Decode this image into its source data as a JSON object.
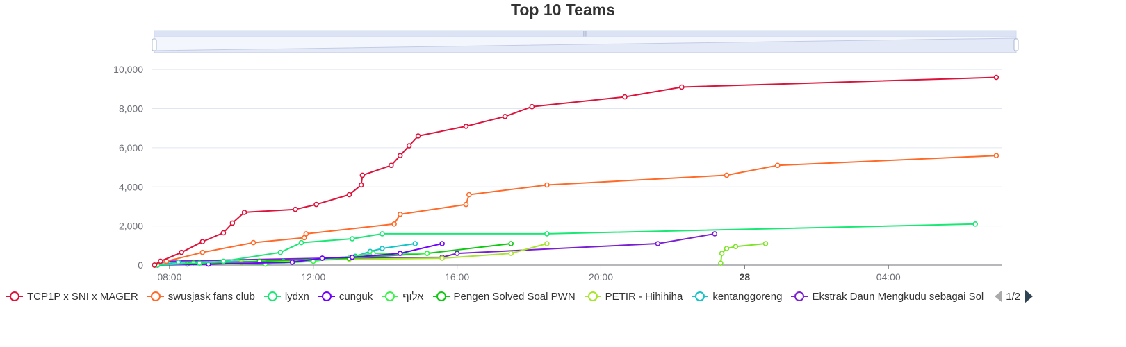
{
  "chart_data": {
    "type": "line",
    "title": "Top 10 Teams",
    "x_axis_type": "time",
    "x_range": [
      "2025-05-27 07:30",
      "2025-05-28 07:10"
    ],
    "x_ticks": [
      {
        "t": "2025-05-27 08:00",
        "label": "08:00",
        "bold": false
      },
      {
        "t": "2025-05-27 12:00",
        "label": "12:00",
        "bold": false
      },
      {
        "t": "2025-05-27 16:00",
        "label": "16:00",
        "bold": false
      },
      {
        "t": "2025-05-27 20:00",
        "label": "20:00",
        "bold": false
      },
      {
        "t": "2025-05-28 00:00",
        "label": "28",
        "bold": true
      },
      {
        "t": "2025-05-28 04:00",
        "label": "04:00",
        "bold": false
      }
    ],
    "ylim": [
      0,
      11000
    ],
    "y_ticks": [
      {
        "v": 0,
        "label": "0"
      },
      {
        "v": 2000,
        "label": "2,000"
      },
      {
        "v": 4000,
        "label": "4,000"
      },
      {
        "v": 6000,
        "label": "6,000"
      },
      {
        "v": 8000,
        "label": "8,000"
      },
      {
        "v": 10000,
        "label": "10,000"
      }
    ],
    "grid": true,
    "legend_position": "bottom",
    "legend_page": "1/2",
    "series": [
      {
        "name": "TCP1P x SNI x MAGER",
        "color": "#dc143c",
        "points": [
          [
            "2025-05-27 07:35",
            0
          ],
          [
            "2025-05-27 07:45",
            200
          ],
          [
            "2025-05-27 08:20",
            650
          ],
          [
            "2025-05-27 08:55",
            1200
          ],
          [
            "2025-05-27 09:30",
            1650
          ],
          [
            "2025-05-27 09:45",
            2150
          ],
          [
            "2025-05-27 10:05",
            2700
          ],
          [
            "2025-05-27 11:30",
            2850
          ],
          [
            "2025-05-27 12:05",
            3100
          ],
          [
            "2025-05-27 13:00",
            3600
          ],
          [
            "2025-05-27 13:20",
            4100
          ],
          [
            "2025-05-27 13:22",
            4600
          ],
          [
            "2025-05-27 14:10",
            5100
          ],
          [
            "2025-05-27 14:25",
            5600
          ],
          [
            "2025-05-27 14:40",
            6100
          ],
          [
            "2025-05-27 14:55",
            6600
          ],
          [
            "2025-05-27 16:15",
            7100
          ],
          [
            "2025-05-27 17:20",
            7600
          ],
          [
            "2025-05-27 18:05",
            8100
          ],
          [
            "2025-05-27 20:40",
            8600
          ],
          [
            "2025-05-27 22:15",
            9100
          ],
          [
            "2025-05-28 07:00",
            9600
          ]
        ]
      },
      {
        "name": "swusjask fans club",
        "color": "#ff6a28",
        "points": [
          [
            "2025-05-27 07:35",
            0
          ],
          [
            "2025-05-27 07:55",
            200
          ],
          [
            "2025-05-27 08:55",
            650
          ],
          [
            "2025-05-27 10:20",
            1150
          ],
          [
            "2025-05-27 11:45",
            1400
          ],
          [
            "2025-05-27 11:48",
            1600
          ],
          [
            "2025-05-27 14:15",
            2100
          ],
          [
            "2025-05-27 14:25",
            2600
          ],
          [
            "2025-05-27 16:15",
            3100
          ],
          [
            "2025-05-27 16:20",
            3600
          ],
          [
            "2025-05-27 18:30",
            4100
          ],
          [
            "2025-05-27 23:30",
            4600
          ],
          [
            "2025-05-28 00:55",
            5100
          ],
          [
            "2025-05-28 07:00",
            5600
          ]
        ]
      },
      {
        "name": "lydxn",
        "color": "#1ae874",
        "points": [
          [
            "2025-05-27 07:40",
            0
          ],
          [
            "2025-05-27 08:50",
            100
          ],
          [
            "2025-05-27 09:30",
            200
          ],
          [
            "2025-05-27 11:05",
            650
          ],
          [
            "2025-05-27 11:40",
            1150
          ],
          [
            "2025-05-27 13:05",
            1350
          ],
          [
            "2025-05-27 13:55",
            1600
          ],
          [
            "2025-05-27 18:30",
            1600
          ],
          [
            "2025-05-28 06:25",
            2100
          ]
        ]
      },
      {
        "name": "cunguk",
        "color": "#6f00ff",
        "points": [
          [
            "2025-05-27 07:40",
            0
          ],
          [
            "2025-05-27 09:05",
            50
          ],
          [
            "2025-05-27 11:25",
            150
          ],
          [
            "2025-05-27 12:15",
            350
          ],
          [
            "2025-05-27 13:05",
            400
          ],
          [
            "2025-05-27 14:25",
            600
          ],
          [
            "2025-05-27 15:35",
            1100
          ]
        ]
      },
      {
        "name": "אלוף",
        "color": "#39f54a",
        "points": [
          [
            "2025-05-27 07:40",
            0
          ],
          [
            "2025-05-27 08:40",
            100
          ],
          [
            "2025-05-27 10:40",
            50
          ],
          [
            "2025-05-27 12:00",
            200
          ],
          [
            "2025-05-27 13:40",
            600
          ],
          [
            "2025-05-27 15:10",
            600
          ]
        ]
      },
      {
        "name": "Pengen Solved Soal PWN",
        "color": "#0fc812",
        "points": [
          [
            "2025-05-27 07:35",
            0
          ],
          [
            "2025-05-27 08:30",
            50
          ],
          [
            "2025-05-27 10:30",
            200
          ],
          [
            "2025-05-27 13:00",
            350
          ],
          [
            "2025-05-27 15:10",
            600
          ],
          [
            "2025-05-27 17:30",
            1100
          ]
        ]
      },
      {
        "name": "PETIR - Hihihiha",
        "color": "#a8e62d",
        "points": [
          [
            "2025-05-27 07:35",
            0
          ],
          [
            "2025-05-27 10:00",
            150
          ],
          [
            "2025-05-27 13:00",
            300
          ],
          [
            "2025-05-27 15:35",
            350
          ],
          [
            "2025-05-27 17:30",
            600
          ],
          [
            "2025-05-27 18:30",
            1100
          ]
        ]
      },
      {
        "name": "kentanggoreng",
        "color": "#14c4c9",
        "points": [
          [
            "2025-05-27 07:35",
            0
          ],
          [
            "2025-05-27 08:15",
            150
          ],
          [
            "2025-05-27 11:10",
            200
          ],
          [
            "2025-05-27 13:10",
            450
          ],
          [
            "2025-05-27 13:35",
            700
          ],
          [
            "2025-05-27 13:55",
            850
          ],
          [
            "2025-05-27 14:50",
            1100
          ]
        ]
      },
      {
        "name": "Ekstrak Daun Mengkudu sebagai Sol",
        "color": "#7a1fd2",
        "points": [
          [
            "2025-05-27 07:35",
            0
          ],
          [
            "2025-05-27 07:55",
            200
          ],
          [
            "2025-05-27 12:15",
            350
          ],
          [
            "2025-05-27 15:35",
            400
          ],
          [
            "2025-05-27 16:00",
            600
          ],
          [
            "2025-05-27 21:35",
            1100
          ],
          [
            "2025-05-27 23:10",
            1600
          ]
        ]
      },
      {
        "name": "",
        "color": "#7fe32b",
        "points": [
          [
            "2025-05-27 23:20",
            100
          ],
          [
            "2025-05-27 23:22",
            600
          ],
          [
            "2025-05-27 23:30",
            850
          ],
          [
            "2025-05-27 23:45",
            950
          ],
          [
            "2025-05-28 00:35",
            1100
          ]
        ]
      }
    ]
  }
}
